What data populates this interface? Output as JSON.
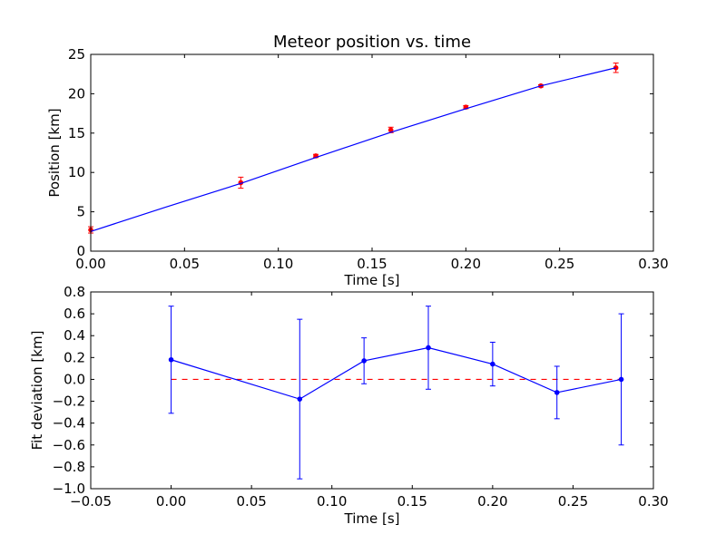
{
  "chart_data": [
    {
      "type": "scatter",
      "title": "Meteor position vs. time",
      "xlabel": "Time [s]",
      "ylabel": "Position [km]",
      "xlim": [
        0.0,
        0.3
      ],
      "ylim": [
        0,
        25
      ],
      "xticks": [
        "0.00",
        "0.05",
        "0.10",
        "0.15",
        "0.20",
        "0.25",
        "0.30"
      ],
      "yticks": [
        "0",
        "5",
        "10",
        "15",
        "20",
        "25"
      ],
      "grid": false,
      "series": [
        {
          "kind": "errorbar-points",
          "color": "#ff0000",
          "errorbar_color": "#ff0000",
          "x": [
            0.0,
            0.08,
            0.12,
            0.16,
            0.2,
            0.24,
            0.28
          ],
          "y": [
            2.7,
            8.7,
            12.1,
            15.4,
            18.3,
            21.0,
            23.3
          ],
          "yerr": [
            0.4,
            0.7,
            0.2,
            0.35,
            0.2,
            0.15,
            0.6
          ]
        },
        {
          "kind": "fit-line",
          "color": "#0000ff",
          "x": [
            0.0,
            0.04,
            0.08,
            0.12,
            0.16,
            0.2,
            0.24,
            0.28
          ],
          "y": [
            2.5,
            5.6,
            8.6,
            11.9,
            15.1,
            18.1,
            21.0,
            23.3
          ]
        }
      ]
    },
    {
      "type": "scatter",
      "title": "",
      "xlabel": "Time [s]",
      "ylabel": "Fit deviation [km]",
      "xlim": [
        -0.05,
        0.3
      ],
      "ylim": [
        -1.0,
        0.8
      ],
      "xticks": [
        "−0.05",
        "0.00",
        "0.05",
        "0.10",
        "0.15",
        "0.20",
        "0.25",
        "0.30"
      ],
      "yticks": [
        "−1.0",
        "−0.8",
        "−0.6",
        "−0.4",
        "−0.2",
        "0.0",
        "0.2",
        "0.4",
        "0.6",
        "0.8"
      ],
      "grid": false,
      "reference_line": {
        "y": 0.0,
        "x_range": [
          0.0,
          0.28
        ],
        "color": "#ff0000",
        "style": "dashed"
      },
      "series": [
        {
          "kind": "errorbar-line",
          "color": "#0000ff",
          "x": [
            0.0,
            0.08,
            0.12,
            0.16,
            0.2,
            0.24,
            0.28
          ],
          "y": [
            0.18,
            -0.18,
            0.17,
            0.29,
            0.14,
            -0.12,
            0.0
          ],
          "yerr": [
            0.49,
            0.73,
            0.21,
            0.38,
            0.2,
            0.24,
            0.6
          ]
        }
      ]
    }
  ]
}
